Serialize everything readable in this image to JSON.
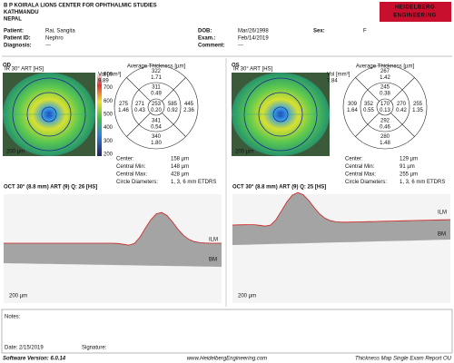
{
  "header": {
    "institution": [
      "B P KOIRALA LIONS CENTER FOR OPHTHALMIC STUDIES",
      "KATHMANDU",
      "NEPAL"
    ],
    "logo": [
      "HEIDELBERG",
      "ENGINEERING"
    ]
  },
  "patient": {
    "fields": [
      {
        "label": "Patient:",
        "value": "Rai, Sangita"
      },
      {
        "label": "Patient ID:",
        "value": "Nephro"
      },
      {
        "label": "Diagnosis:",
        "value": "---"
      },
      {
        "label": "DOB:",
        "value": "Mar/26/1998"
      },
      {
        "label": "Exam.:",
        "value": "Feb/14/2019"
      },
      {
        "label": "Comment:",
        "value": "---"
      },
      {
        "label": "Sex:",
        "value": "F"
      }
    ]
  },
  "eyes": [
    {
      "label": "OD",
      "fundus_label": "IR 30° ART [HS]",
      "fundus_scale": "200 µm",
      "colorbar": [
        "800",
        "700",
        "600",
        "500",
        "400",
        "300",
        "200"
      ],
      "map_title": "Average Thickness [µm]",
      "vol_label": "Vol [mm³]",
      "vol": "9.89",
      "sectors": [
        {
          "thickness": "322",
          "volume": "1.71"
        },
        {
          "thickness": "311",
          "volume": "0.49"
        },
        {
          "thickness": "275",
          "volume": "1.46"
        },
        {
          "thickness": "271",
          "volume": "0.43"
        },
        {
          "thickness": "253",
          "volume": "0.20"
        },
        {
          "thickness": "585",
          "volume": "0.92"
        },
        {
          "thickness": "445",
          "volume": "2.36"
        },
        {
          "thickness": "341",
          "volume": "0.54"
        },
        {
          "thickness": "340",
          "volume": "1.80"
        }
      ],
      "stats": [
        {
          "label": "Center:",
          "value": "158 µm"
        },
        {
          "label": "Central Min:",
          "value": "148 µm"
        },
        {
          "label": "Central Max:",
          "value": "428 µm"
        },
        {
          "label": "Circle Diameters:",
          "value": "1, 3, 6 mm ETDRS"
        }
      ],
      "oct_label": "OCT 30° (8.8 mm) ART (9) Q: 26 [HS]",
      "oct_scale": "200 µm",
      "ilm": "ILM",
      "bm": "BM"
    },
    {
      "label": "OS",
      "fundus_label": "IR 30° ART [HS]",
      "fundus_scale": "200 µm",
      "map_title": "Average Thickness [µm]",
      "vol_label": "Vol [mm³]",
      "vol": "7.84",
      "sectors": [
        {
          "thickness": "267",
          "volume": "1.42"
        },
        {
          "thickness": "245",
          "volume": "0.38"
        },
        {
          "thickness": "309",
          "volume": "1.64"
        },
        {
          "thickness": "352",
          "volume": "0.55"
        },
        {
          "thickness": "170",
          "volume": "0.13"
        },
        {
          "thickness": "270",
          "volume": "0.42"
        },
        {
          "thickness": "255",
          "volume": "1.35"
        },
        {
          "thickness": "292",
          "volume": "0.46"
        },
        {
          "thickness": "280",
          "volume": "1.48"
        }
      ],
      "stats": [
        {
          "label": "Center:",
          "value": "129 µm"
        },
        {
          "label": "Central Min:",
          "value": "91 µm"
        },
        {
          "label": "Central Max:",
          "value": "255 µm"
        },
        {
          "label": "Circle Diameters:",
          "value": "1, 3, 6 mm ETDRS"
        }
      ],
      "oct_label": "OCT 30° (8.8 mm) ART (9) Q: 25 [HS]",
      "oct_scale": "200 µm",
      "ilm": "ILM",
      "bm": "BM"
    }
  ],
  "notes": {
    "label": "Notes:",
    "date": "Date: 2/15/2019",
    "signature": "Signature:"
  },
  "footer": {
    "software": "Software Version: 6.0.14",
    "website": "www.HeidelbergEngineering.com",
    "report": "Thickness Map Single Exam Report OU"
  }
}
